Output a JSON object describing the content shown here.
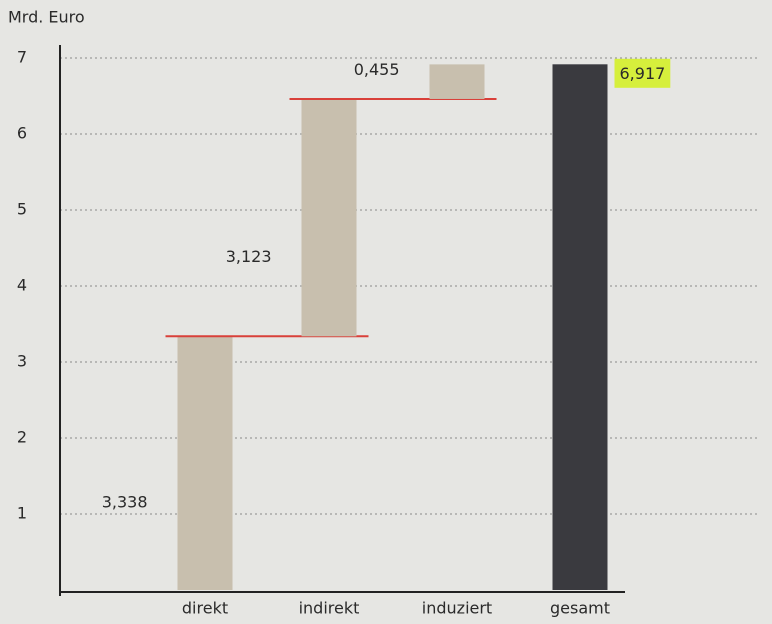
{
  "chart_data": {
    "type": "waterfall",
    "y_label": "Mrd. Euro",
    "categories": [
      "direkt",
      "indirekt",
      "induziert",
      "gesamt"
    ],
    "values": [
      3.338,
      3.123,
      0.455,
      6.917
    ],
    "value_labels": [
      "3,338",
      "3,123",
      "0,455",
      "6,917"
    ],
    "measure": [
      "relative",
      "relative",
      "relative",
      "total"
    ],
    "colors": [
      "#c8bfae",
      "#c8bfae",
      "#c8bfae",
      "#3a3a3f"
    ],
    "connector_color": "#d9403a",
    "highlight_color": "#d6ef3c",
    "ylim": [
      0,
      7
    ],
    "yticks": [
      1,
      2,
      3,
      4,
      5,
      6,
      7
    ],
    "grid": true
  }
}
